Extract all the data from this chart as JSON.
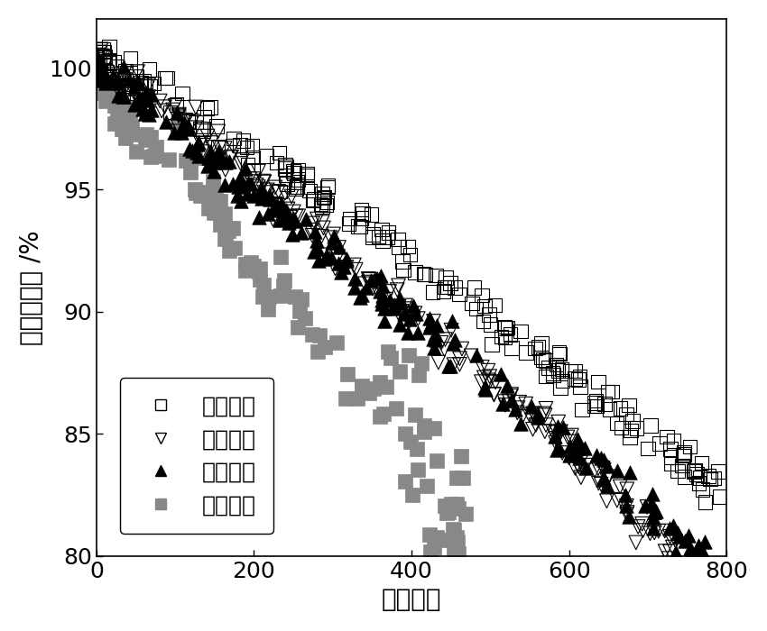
{
  "title": "",
  "xlabel": "循环次数",
  "ylabel": "容量保持率 /%",
  "xlim": [
    0,
    800
  ],
  "ylim": [
    80,
    102
  ],
  "yticks": [
    80,
    85,
    90,
    95,
    100
  ],
  "xticks": [
    0,
    200,
    400,
    600,
    800
  ],
  "series": {
    "example1": {
      "label": "实施例一",
      "color": "#000000",
      "marker": "s",
      "markersize": 5,
      "fillstyle": "none"
    },
    "example2": {
      "label": "实施例二",
      "color": "#000000",
      "marker": "v",
      "markersize": 5,
      "fillstyle": "none"
    },
    "example3": {
      "label": "实施例三",
      "color": "#000000",
      "marker": "^",
      "markersize": 5,
      "fillstyle": "full"
    },
    "compare1": {
      "label": "对比例一",
      "color": "#888888",
      "marker": "s",
      "markersize": 5,
      "fillstyle": "full"
    }
  },
  "background_color": "#ffffff",
  "font_size": 20,
  "tick_font_size": 18,
  "legend_font_size": 18
}
